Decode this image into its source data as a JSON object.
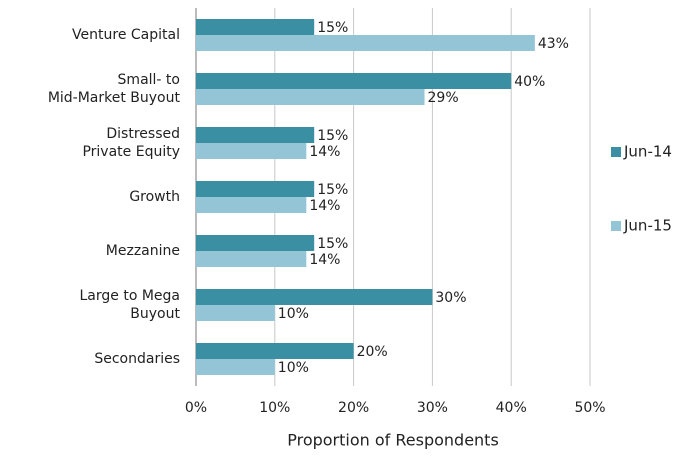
{
  "chart_data": {
    "type": "bar",
    "orientation": "horizontal",
    "categories": [
      [
        "Venture Capital"
      ],
      [
        "Small- to",
        "Mid-Market Buyout"
      ],
      [
        "Distressed",
        "Private Equity"
      ],
      [
        "Growth"
      ],
      [
        "Mezzanine"
      ],
      [
        "Large to Mega",
        "Buyout"
      ],
      [
        "Secondaries"
      ]
    ],
    "series": [
      {
        "name": "Jun-14",
        "color": "#3a8fa3",
        "values": [
          15,
          40,
          15,
          15,
          15,
          30,
          20
        ],
        "value_labels": [
          "15%",
          "40%",
          "15%",
          "15%",
          "15%",
          "30%",
          "20%"
        ]
      },
      {
        "name": "Jun-15",
        "color": "#93c5d6",
        "values": [
          43,
          29,
          14,
          14,
          14,
          10,
          10
        ],
        "value_labels": [
          "43%",
          "29%",
          "14%",
          "14%",
          "14%",
          "10%",
          "10%"
        ]
      }
    ],
    "xlim": [
      0,
      50
    ],
    "xticks": [
      {
        "value": 0,
        "label": "0%"
      },
      {
        "value": 10,
        "label": "10%"
      },
      {
        "value": 20,
        "label": "20%"
      },
      {
        "value": 30,
        "label": "30%"
      },
      {
        "value": 40,
        "label": "40%"
      },
      {
        "value": 50,
        "label": "50%"
      }
    ],
    "xlabel": "Proportion of Respondents",
    "grid": true,
    "legend": "right"
  }
}
